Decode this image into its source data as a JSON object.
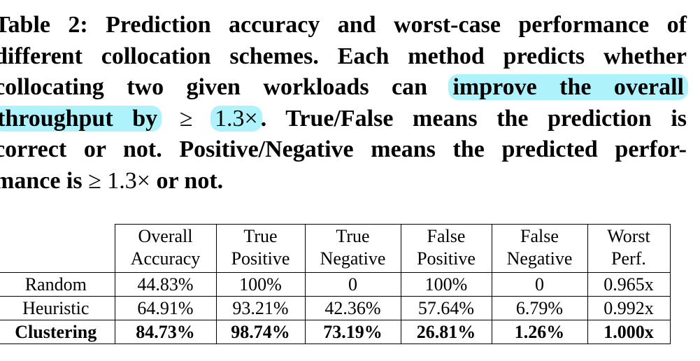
{
  "caption": {
    "line1": "Table 2: Prediction accuracy and worst-case performance of",
    "line2": "different collocation schemes. Each method predicts whether",
    "line3_a": "collocating two given workloads can ",
    "line3_hl": "improve the overall",
    "line4_hl1": "throughput by",
    "line4_sym": " ≥ ",
    "line4_hl2": "1.3×",
    "line4_b": ". True/False means the prediction is",
    "line5": "correct or not. Positive/Negative means the predicted perfor-",
    "line6_a": "mance is ",
    "line6_math": "≥ 1.3×",
    "line6_b": " or not."
  },
  "table": {
    "headers": [
      {
        "top": "Overall",
        "bottom": "Accuracy"
      },
      {
        "top": "True",
        "bottom": "Positive"
      },
      {
        "top": "True",
        "bottom": "Negative"
      },
      {
        "top": "False",
        "bottom": "Positive"
      },
      {
        "top": "False",
        "bottom": "Negative"
      },
      {
        "top": "Worst",
        "bottom": "Perf."
      }
    ],
    "rows": [
      {
        "label": "Random",
        "cells": [
          "44.83%",
          "100%",
          "0",
          "100%",
          "0",
          "0.965x"
        ]
      },
      {
        "label": "Heuristic",
        "cells": [
          "64.91%",
          "93.21%",
          "42.36%",
          "57.64%",
          "6.79%",
          "0.992x"
        ]
      },
      {
        "label": "Clustering",
        "cells": [
          "84.73%",
          "98.74%",
          "73.19%",
          "26.81%",
          "1.26%",
          "1.000x"
        ]
      }
    ]
  },
  "colors": {
    "highlight": "#aef3fb"
  }
}
